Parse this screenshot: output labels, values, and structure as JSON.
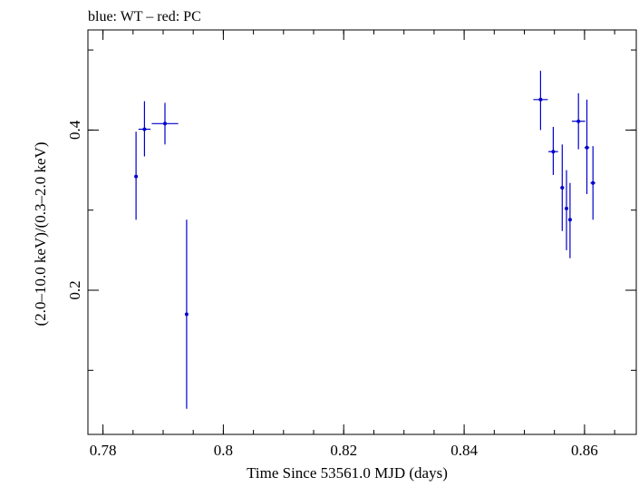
{
  "chart_data": {
    "type": "scatter",
    "title": "blue: WT – red: PC",
    "xlabel": "Time Since 53561.0 MJD (days)",
    "ylabel": "(2.0–10.0 keV)/(0.3–2.0 keV)",
    "xlim": [
      0.7775,
      0.8686
    ],
    "ylim": [
      0.02,
      0.525
    ],
    "x_ticks": [
      {
        "value": 0.78,
        "label": "0.78"
      },
      {
        "value": 0.8,
        "label": "0.8"
      },
      {
        "value": 0.82,
        "label": "0.82"
      },
      {
        "value": 0.84,
        "label": "0.84"
      },
      {
        "value": 0.86,
        "label": "0.86"
      }
    ],
    "y_ticks": [
      {
        "value": 0.2,
        "label": "0.2"
      },
      {
        "value": 0.4,
        "label": "0.4"
      }
    ],
    "x_minor_step": 0.005,
    "y_minor_step": 0.1,
    "grid": false,
    "series": [
      {
        "color": "#0000cc",
        "points": [
          {
            "x": 0.7855,
            "xerr": 0.0002,
            "y": 0.342,
            "ylo": 0.288,
            "yhi": 0.398
          },
          {
            "x": 0.7869,
            "xerr": 0.001,
            "y": 0.401,
            "ylo": 0.367,
            "yhi": 0.436
          },
          {
            "x": 0.7903,
            "xerr": 0.0022,
            "y": 0.408,
            "ylo": 0.382,
            "yhi": 0.434
          },
          {
            "x": 0.7939,
            "xerr": 0.0002,
            "y": 0.17,
            "ylo": 0.052,
            "yhi": 0.288
          },
          {
            "x": 0.8527,
            "xerr": 0.0012,
            "y": 0.438,
            "ylo": 0.4,
            "yhi": 0.474
          },
          {
            "x": 0.8548,
            "xerr": 0.0008,
            "y": 0.373,
            "ylo": 0.344,
            "yhi": 0.404
          },
          {
            "x": 0.8563,
            "xerr": 0.0003,
            "y": 0.328,
            "ylo": 0.274,
            "yhi": 0.382
          },
          {
            "x": 0.857,
            "xerr": 0.0003,
            "y": 0.302,
            "ylo": 0.25,
            "yhi": 0.35
          },
          {
            "x": 0.8576,
            "xerr": 0.0003,
            "y": 0.288,
            "ylo": 0.24,
            "yhi": 0.334
          },
          {
            "x": 0.859,
            "xerr": 0.0011,
            "y": 0.411,
            "ylo": 0.376,
            "yhi": 0.446
          },
          {
            "x": 0.8604,
            "xerr": 0.0004,
            "y": 0.378,
            "ylo": 0.32,
            "yhi": 0.438
          },
          {
            "x": 0.8614,
            "xerr": 0.0004,
            "y": 0.334,
            "ylo": 0.288,
            "yhi": 0.38
          }
        ]
      }
    ]
  }
}
